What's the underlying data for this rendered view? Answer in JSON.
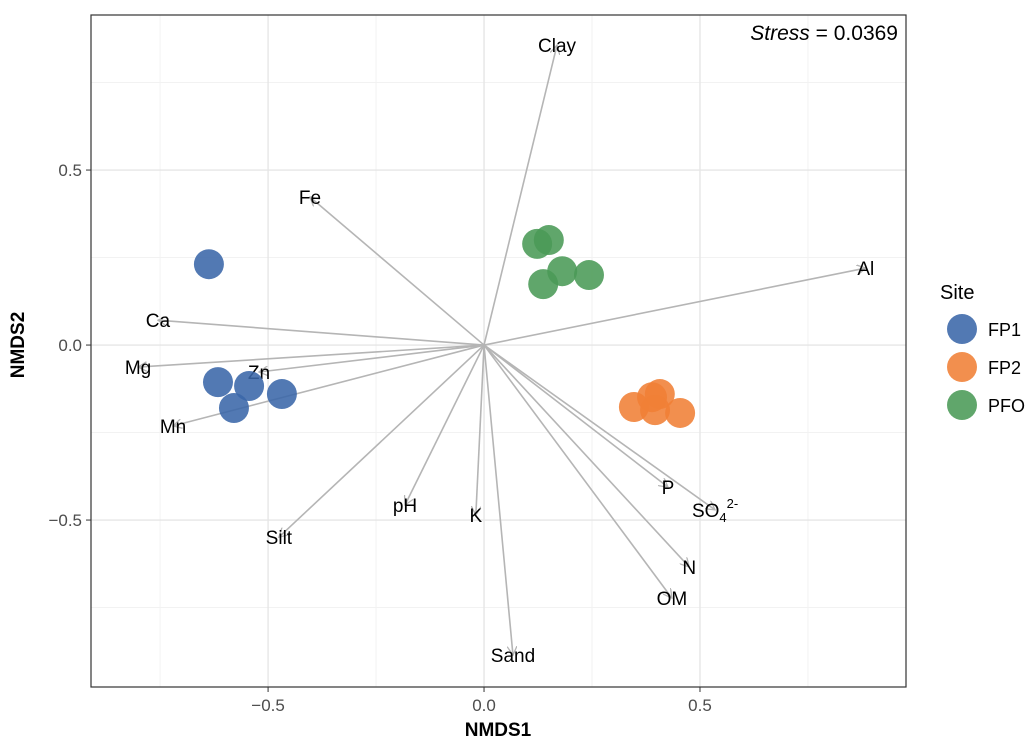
{
  "chart_data": {
    "type": "scatter",
    "x_label": "NMDS1",
    "y_label": "NMDS2",
    "annotation": {
      "italic": "Stress",
      "text": "= 0.0369"
    },
    "xlim": [
      -0.91,
      0.977
    ],
    "ylim": [
      -0.977,
      0.943
    ],
    "xticks": [
      {
        "value": -0.5,
        "label": "−0.5"
      },
      {
        "value": 0,
        "label": "0.0"
      },
      0.5
    ],
    "yticks": [
      {
        "value": -0.5,
        "label": "−0.5"
      },
      {
        "value": 0,
        "label": "0.0"
      },
      0.5
    ],
    "x_minor_ticks": [
      -0.75,
      -0.25,
      0.25,
      0.75
    ],
    "y_minor_ticks": [
      -0.75,
      -0.25,
      0.25,
      0.75
    ],
    "grid": true,
    "legend_title": "Site",
    "legend_position": "right",
    "series": [
      {
        "name": "FP1",
        "color": "#3a67a9",
        "x": [
          -0.637,
          -0.616,
          -0.544,
          -0.579,
          -0.468
        ],
        "y": [
          0.231,
          -0.106,
          -0.117,
          -0.18,
          -0.14
        ]
      },
      {
        "name": "FP2",
        "color": "#f07f35",
        "x": [
          0.347,
          0.389,
          0.407,
          0.396,
          0.454
        ],
        "y": [
          -0.177,
          -0.149,
          -0.14,
          -0.186,
          -0.194
        ]
      },
      {
        "name": "PFO",
        "color": "#4a9a57",
        "x": [
          0.123,
          0.15,
          0.181,
          0.243,
          0.137
        ],
        "y": [
          0.289,
          0.3,
          0.211,
          0.2,
          0.174
        ]
      }
    ],
    "vectors": [
      {
        "label": "Clay",
        "x": 0.169,
        "y": 0.857
      },
      {
        "label": "Fe",
        "x": -0.403,
        "y": 0.423
      },
      {
        "label": "Al",
        "x": 0.884,
        "y": 0.22
      },
      {
        "label": "Ca",
        "x": -0.755,
        "y": 0.071
      },
      {
        "label": "Mg",
        "x": -0.801,
        "y": -0.063
      },
      {
        "label": "Zn",
        "x": -0.521,
        "y": -0.077
      },
      {
        "label": "Mn",
        "x": -0.72,
        "y": -0.231
      },
      {
        "label": "Silt",
        "x": -0.475,
        "y": -0.549
      },
      {
        "label": "pH",
        "x": -0.183,
        "y": -0.457
      },
      {
        "label": "K",
        "x": -0.019,
        "y": -0.486
      },
      {
        "label": "Sand",
        "x": 0.067,
        "y": -0.886
      },
      {
        "label": "P",
        "x": 0.426,
        "y": -0.406
      },
      {
        "label": "SO",
        "label_sub": "4",
        "label_sup": "2-",
        "x": 0.535,
        "y": -0.471
      },
      {
        "label": "N",
        "x": 0.475,
        "y": -0.634
      },
      {
        "label": "OM",
        "x": 0.435,
        "y": -0.723
      }
    ]
  }
}
